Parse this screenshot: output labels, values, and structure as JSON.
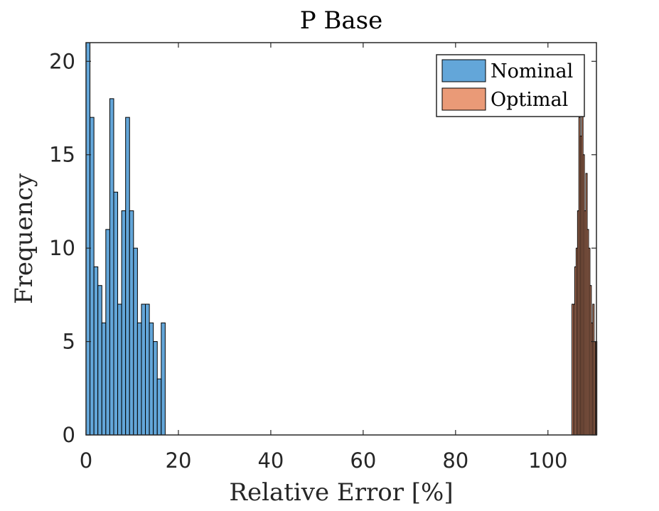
{
  "chart_data": {
    "type": "bar",
    "title": "P Base",
    "xlabel": "Relative Error [%]",
    "ylabel": "Frequency",
    "xlim": [
      0,
      110.5
    ],
    "ylim": [
      0,
      21
    ],
    "xticks": [
      0,
      20,
      40,
      60,
      80,
      100
    ],
    "yticks": [
      0,
      5,
      10,
      15,
      20
    ],
    "grid": false,
    "legend_position": "top-right",
    "series": [
      {
        "name": "Nominal",
        "color": "#63a6d9",
        "bin_edges": [
          0,
          0.857,
          1.714,
          2.571,
          3.428,
          4.285,
          5.142,
          5.999,
          6.856,
          7.713,
          8.57,
          9.427,
          10.284,
          11.141,
          11.998,
          12.855,
          13.712,
          14.569,
          15.426,
          16.283,
          17.14
        ],
        "values": [
          21,
          17,
          9,
          8,
          6,
          11,
          18,
          13,
          7,
          12,
          17,
          12,
          10,
          6,
          7,
          7,
          6,
          5,
          3,
          6
        ]
      },
      {
        "name": "Optimal",
        "color": "#ea9a77",
        "bin_edges": [
          105.2,
          105.5,
          105.8,
          106.1,
          106.4,
          106.7,
          107.0,
          107.3,
          107.6,
          107.9,
          108.2,
          108.5,
          108.8,
          109.1,
          109.4,
          109.7,
          110.0,
          110.3,
          110.6
        ],
        "values": [
          7,
          7,
          9,
          10,
          12,
          17,
          16,
          18,
          15,
          12,
          14,
          11,
          10,
          8,
          6,
          7,
          5,
          5
        ]
      }
    ]
  }
}
